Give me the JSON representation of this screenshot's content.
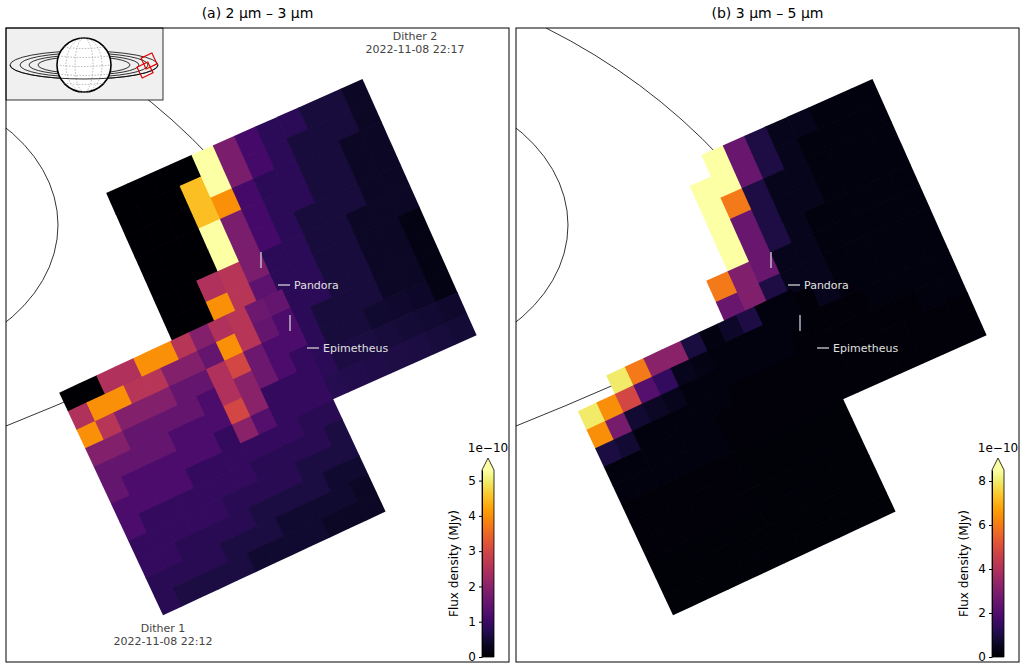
{
  "chart_data": [
    {
      "type": "heatmap",
      "title": "(a) 2 µm – 3 µm",
      "annotations": [
        "Pandora",
        "Epimetheus"
      ],
      "colorbar": {
        "title": "Flux density (MJy)",
        "offset_text": "1e−10",
        "range": [
          0,
          5.3
        ],
        "ticks": [
          0,
          1,
          2,
          3,
          4,
          5
        ]
      },
      "dithers": [
        {
          "name": "Dither 1",
          "time": "2022-11-08 22:12",
          "cells": [
            [
              0,
              0,
              2.5,
              2.5,
              4,
              4,
              2.6,
              1.9,
              2.5,
              2.6,
              1.6,
              1.5
            ],
            [
              2.5,
              4,
              4,
              2.6,
              2.6,
              1.9,
              1.9,
              1.5,
              4,
              2.6,
              1.5,
              1.2
            ],
            [
              4,
              2.6,
              1.9,
              1.9,
              1.9,
              1.5,
              1.5,
              2.5,
              3,
              1.6,
              1.2,
              1.2
            ],
            [
              1.9,
              1.9,
              1.5,
              1.5,
              1.5,
              1.5,
              1.2,
              2.5,
              2,
              1.6,
              1.2,
              0.9
            ],
            [
              1.5,
              1.5,
              1.5,
              1.5,
              1.2,
              1.2,
              1.2,
              3,
              2,
              0.9,
              0.9,
              0.9
            ],
            [
              1.5,
              1.2,
              1.2,
              1.2,
              1.2,
              1.2,
              0.9,
              2,
              1.3,
              0.9,
              0.9,
              0.9
            ],
            [
              1.2,
              1.2,
              1.2,
              1.2,
              0.9,
              0.9,
              0.9,
              0.9,
              0.9,
              0.9,
              0.75,
              0.75
            ],
            [
              1.2,
              0.9,
              0.9,
              0.9,
              0.9,
              0.9,
              0.9,
              0.75,
              0.75,
              0.75,
              0.75,
              0.6
            ],
            [
              0.9,
              0.9,
              0.9,
              0.9,
              0.9,
              0.75,
              0.75,
              0.75,
              0.75,
              0.6,
              0.6,
              0.6
            ],
            [
              0.9,
              0.9,
              0.75,
              0.75,
              0.75,
              0.75,
              0.6,
              0.6,
              0.6,
              0.6,
              0.45,
              0.45
            ],
            [
              0.75,
              0.75,
              0.75,
              0.75,
              0.6,
              0.6,
              0.6,
              0.45,
              0.45,
              0.45,
              0.45,
              0.35
            ],
            [
              0.75,
              0.6,
              0.6,
              0.6,
              0.6,
              0.45,
              0.45,
              0.45,
              0.45,
              0.35,
              0.35,
              0.35
            ]
          ]
        },
        {
          "name": "Dither 2",
          "time": "2022-11-08 22:17",
          "cells": [
            [
              0,
              0,
              0,
              0,
              6,
              1.8,
              1.1,
              0.8,
              0.8,
              0.55,
              0.55,
              0.35
            ],
            [
              0,
              0,
              0,
              4.5,
              6,
              1.8,
              1.1,
              0.8,
              0.55,
              0.55,
              0.55,
              0.35
            ],
            [
              0,
              0,
              0,
              4.5,
              4,
              1.1,
              0.8,
              0.8,
              0.55,
              0.55,
              0.35,
              0.35
            ],
            [
              0,
              0,
              0,
              6,
              1.8,
              1.1,
              0.8,
              0.8,
              0.55,
              0.55,
              0.35,
              0.35
            ],
            [
              0,
              0,
              0,
              6,
              1.8,
              1.1,
              0.8,
              0.55,
              0.55,
              0.55,
              0.35,
              0.35
            ],
            [
              0,
              0,
              2.5,
              2.6,
              1.8,
              0.8,
              0.8,
              0.55,
              0.55,
              0.35,
              0.35,
              0.35
            ],
            [
              0,
              0,
              4,
              2.6,
              1.4,
              0.8,
              0.8,
              0.55,
              0.55,
              0.35,
              0.35,
              0.2
            ],
            [
              0,
              0,
              4,
              1.6,
              1.1,
              0.8,
              0.8,
              0.55,
              0.55,
              0.35,
              0.35,
              0.2
            ],
            [
              0,
              2.5,
              2.6,
              1.6,
              1.1,
              0.8,
              0.55,
              0.55,
              0.55,
              0.35,
              0.35,
              0.2
            ],
            [
              0,
              2,
              2,
              1.1,
              2.4,
              0.8,
              0.55,
              0.55,
              0.45,
              0.42,
              0.38,
              0.2
            ],
            [
              0,
              3,
              1.6,
              1.1,
              0.8,
              0.8,
              0.62,
              0.58,
              0.54,
              0.5,
              0.47,
              0.43
            ],
            [
              2,
              3,
              1.6,
              1.1,
              0.8,
              0.74,
              0.7,
              0.67,
              0.63,
              0.59,
              0.55,
              0.51
            ]
          ]
        }
      ]
    },
    {
      "type": "heatmap",
      "title": "(b) 3 µm – 5 µm",
      "annotations": [
        "Pandora",
        "Epimetheus"
      ],
      "colorbar": {
        "title": "Flux density (MJy)",
        "offset_text": "1e−10",
        "range": [
          0,
          8.5
        ],
        "ticks": [
          0,
          2,
          4,
          6,
          8
        ]
      },
      "dithers": [
        {
          "cells": [
            [
              null,
              null,
              8,
              6,
              3.2,
              3.2,
              0.9,
              0.25,
              0.6,
              1,
              0.2,
              0.2
            ],
            [
              8,
              6.4,
              4.8,
              2.1,
              1.4,
              0.4,
              0.3,
              0.2,
              0.2,
              0.2,
              0.2,
              0.2
            ],
            [
              6.4,
              2.8,
              0.75,
              0.55,
              0.4,
              0.2,
              0.2,
              0.2,
              0.2,
              0.2,
              0.2,
              0.15
            ],
            [
              0.95,
              0.75,
              0.2,
              0.2,
              0.2,
              0.2,
              0.2,
              0.15,
              0.15,
              0.15,
              0.15,
              0.15
            ],
            [
              0.2,
              0.2,
              0.2,
              0.2,
              0.2,
              0.2,
              0.15,
              0.15,
              0.15,
              0.15,
              0.15,
              0.15
            ],
            [
              0.2,
              0.2,
              0.2,
              0.2,
              0.2,
              0.2,
              0.15,
              0.15,
              0.15,
              0.15,
              0.15,
              0.15
            ],
            [
              0.15,
              0.15,
              0.15,
              0.15,
              0.15,
              0.15,
              0.12,
              0.12,
              0.12,
              0.12,
              0.12,
              0.12
            ],
            [
              0.15,
              0.15,
              0.15,
              0.15,
              0.15,
              0.15,
              0.12,
              0.12,
              0.12,
              0.12,
              0.12,
              0.12
            ],
            [
              0.15,
              0.15,
              0.15,
              0.15,
              0.15,
              0.15,
              0.12,
              0.12,
              0.12,
              0.12,
              0.12,
              0.12
            ],
            [
              0.12,
              0.12,
              0.12,
              0.12,
              0.12,
              0.12,
              0.1,
              0.1,
              0.1,
              0.1,
              0.1,
              0.1
            ],
            [
              0.12,
              0.12,
              0.12,
              0.12,
              0.12,
              0.12,
              0.1,
              0.1,
              0.1,
              0.1,
              0.1,
              0.1
            ],
            [
              0.12,
              0.12,
              0.12,
              0.12,
              0.12,
              0.12,
              0.1,
              0.1,
              0.1,
              0.1,
              0.1,
              0.1
            ]
          ]
        },
        {
          "cells": [
            [
              null,
              null,
              null,
              null,
              10,
              2.5,
              1,
              0.4,
              0.4,
              0.2,
              0.2,
              0.2
            ],
            [
              null,
              null,
              null,
              9,
              10,
              2.5,
              1,
              0.4,
              0.2,
              0.2,
              0.2,
              0.2
            ],
            [
              null,
              null,
              null,
              9,
              6,
              1,
              0.4,
              0.4,
              0.2,
              0.2,
              0.2,
              0.2
            ],
            [
              null,
              null,
              null,
              10,
              2.5,
              1,
              0.4,
              0.4,
              0.2,
              0.2,
              0.2,
              0.2
            ],
            [
              null,
              null,
              null,
              10,
              2.5,
              1,
              0.4,
              0.2,
              0.2,
              0.2,
              0.2,
              0.2
            ],
            [
              null,
              null,
              6,
              3,
              2.5,
              0.4,
              0.4,
              0.2,
              0.2,
              0.2,
              0.2,
              0.2
            ],
            [
              null,
              null,
              2.5,
              3,
              1,
              0.4,
              0.4,
              0.2,
              0.2,
              0.2,
              0.2,
              0.2
            ],
            [
              null,
              null,
              2.5,
              0.15,
              0.15,
              0.15,
              0.4,
              0.2,
              0.2,
              0.2,
              0.2,
              0.2
            ],
            [
              null,
              0.6,
              0.4,
              0.15,
              0.15,
              0.15,
              0.15,
              0.15,
              0.2,
              0.2,
              0.2,
              0.2
            ],
            [
              null,
              0.6,
              0.4,
              0.15,
              0.15,
              0.15,
              0.15,
              0.15,
              0.15,
              0.15,
              0.2,
              0.2
            ],
            [
              null,
              0.8,
              0.15,
              0.15,
              0.15,
              0.15,
              0.15,
              0.15,
              0.15,
              0.15,
              0.15,
              0.15
            ],
            [
              0.6,
              0.8,
              0.15,
              0.15,
              0.15,
              0.15,
              0.15,
              0.15,
              0.15,
              0.15,
              0.15,
              0.15
            ]
          ]
        }
      ]
    }
  ]
}
